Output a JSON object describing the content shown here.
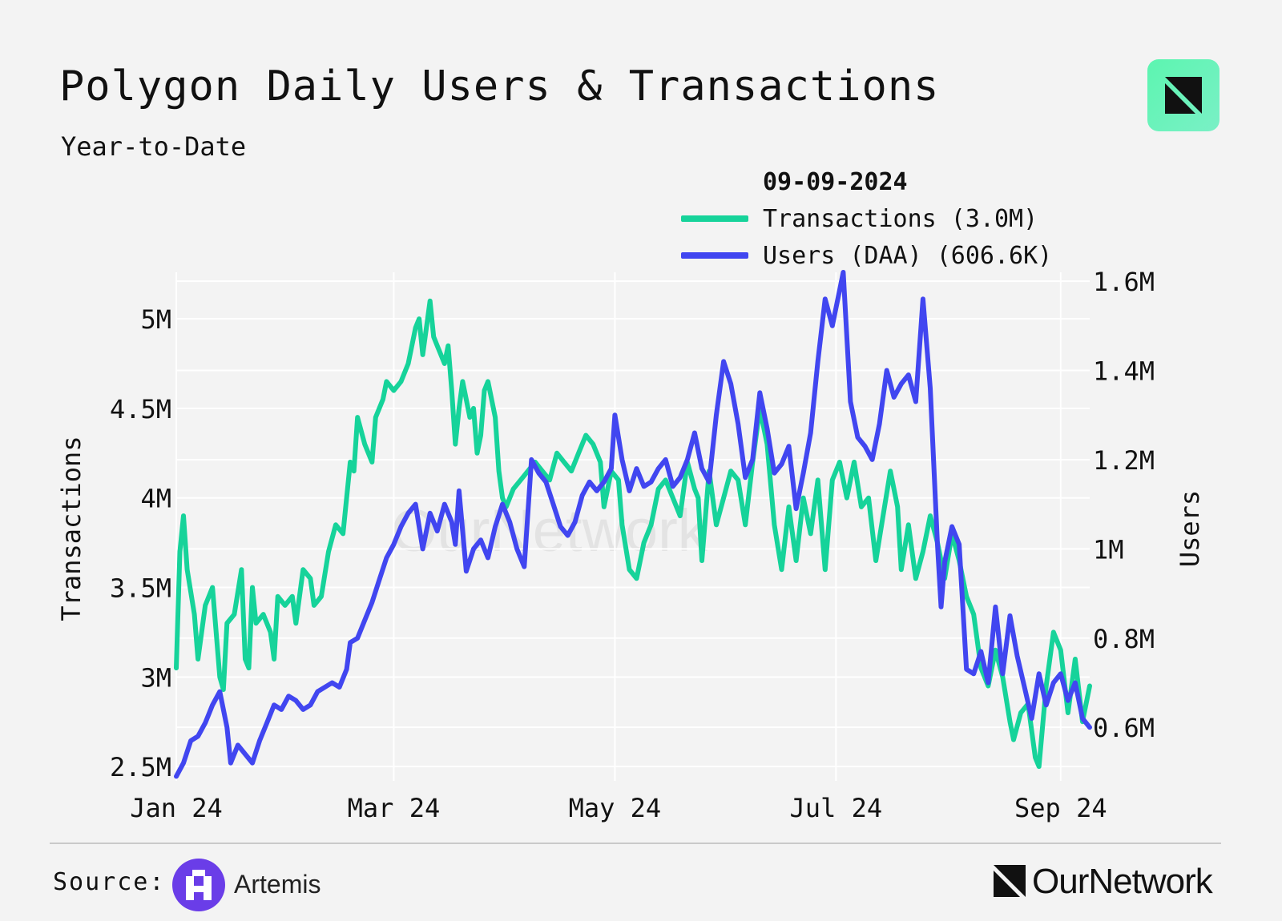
{
  "header": {
    "title": "Polygon Daily Users & Transactions",
    "subtitle": "Year-to-Date"
  },
  "legend": {
    "date": "09-09-2024",
    "items": [
      {
        "label": "Transactions (3.0M)",
        "color": "#16d39a"
      },
      {
        "label": "Users (DAA) (606.6K)",
        "color": "#4146f0"
      }
    ]
  },
  "watermark": "OurNetwork",
  "footer": {
    "source_label": "Source:",
    "source_name": "Artemis",
    "brand": "OurNetwork"
  },
  "chart_data": {
    "type": "line",
    "title": "Polygon Daily Users & Transactions",
    "subtitle": "Year-to-Date",
    "grid": true,
    "x_ticks": [
      "Jan 24",
      "Mar 24",
      "May 24",
      "Jul 24",
      "Sep 24"
    ],
    "x_tick_days": [
      0,
      60,
      121,
      182,
      244
    ],
    "x_range_days": [
      0,
      252
    ],
    "y_left": {
      "label": "Transactions",
      "ticks": [
        2500000,
        3000000,
        3500000,
        4000000,
        4500000,
        5000000
      ],
      "tick_labels": [
        "2.5M",
        "3M",
        "3.5M",
        "4M",
        "4.5M",
        "5M"
      ],
      "range": [
        2420000,
        5260000
      ]
    },
    "y_right": {
      "label": "Users",
      "ticks": [
        600000,
        800000,
        1000000,
        1200000,
        1400000,
        1600000
      ],
      "tick_labels": [
        "0.6M",
        "0.8M",
        "1M",
        "1.2M",
        "1.4M",
        "1.6M"
      ],
      "range": [
        480000,
        1620000
      ]
    },
    "series": [
      {
        "name": "Transactions",
        "axis": "left",
        "color": "#16d39a",
        "points": [
          [
            0,
            3050000
          ],
          [
            1,
            3700000
          ],
          [
            2,
            3900000
          ],
          [
            3,
            3600000
          ],
          [
            5,
            3350000
          ],
          [
            6,
            3100000
          ],
          [
            8,
            3400000
          ],
          [
            10,
            3500000
          ],
          [
            12,
            3000000
          ],
          [
            13,
            2930000
          ],
          [
            14,
            3300000
          ],
          [
            16,
            3350000
          ],
          [
            18,
            3600000
          ],
          [
            19,
            3100000
          ],
          [
            20,
            3050000
          ],
          [
            21,
            3500000
          ],
          [
            22,
            3300000
          ],
          [
            24,
            3350000
          ],
          [
            26,
            3250000
          ],
          [
            27,
            3100000
          ],
          [
            28,
            3450000
          ],
          [
            30,
            3400000
          ],
          [
            32,
            3450000
          ],
          [
            33,
            3300000
          ],
          [
            35,
            3600000
          ],
          [
            37,
            3550000
          ],
          [
            38,
            3400000
          ],
          [
            40,
            3450000
          ],
          [
            42,
            3700000
          ],
          [
            44,
            3850000
          ],
          [
            46,
            3800000
          ],
          [
            48,
            4200000
          ],
          [
            49,
            4150000
          ],
          [
            50,
            4450000
          ],
          [
            52,
            4300000
          ],
          [
            54,
            4200000
          ],
          [
            55,
            4450000
          ],
          [
            57,
            4550000
          ],
          [
            58,
            4650000
          ],
          [
            60,
            4600000
          ],
          [
            62,
            4650000
          ],
          [
            64,
            4750000
          ],
          [
            66,
            4950000
          ],
          [
            67,
            5000000
          ],
          [
            68,
            4800000
          ],
          [
            70,
            5100000
          ],
          [
            71,
            4900000
          ],
          [
            72,
            4850000
          ],
          [
            74,
            4750000
          ],
          [
            75,
            4850000
          ],
          [
            76,
            4600000
          ],
          [
            77,
            4300000
          ],
          [
            78,
            4500000
          ],
          [
            79,
            4650000
          ],
          [
            81,
            4450000
          ],
          [
            82,
            4500000
          ],
          [
            83,
            4250000
          ],
          [
            84,
            4350000
          ],
          [
            85,
            4600000
          ],
          [
            86,
            4650000
          ],
          [
            88,
            4450000
          ],
          [
            89,
            4150000
          ],
          [
            90,
            4000000
          ],
          [
            91,
            3950000
          ],
          [
            93,
            4050000
          ],
          [
            95,
            4100000
          ],
          [
            97,
            4150000
          ],
          [
            99,
            4200000
          ],
          [
            101,
            4150000
          ],
          [
            103,
            4100000
          ],
          [
            105,
            4250000
          ],
          [
            107,
            4200000
          ],
          [
            109,
            4150000
          ],
          [
            111,
            4250000
          ],
          [
            113,
            4350000
          ],
          [
            115,
            4300000
          ],
          [
            117,
            4200000
          ],
          [
            118,
            3950000
          ],
          [
            120,
            4150000
          ],
          [
            122,
            4100000
          ],
          [
            123,
            3850000
          ],
          [
            125,
            3600000
          ],
          [
            127,
            3550000
          ],
          [
            129,
            3750000
          ],
          [
            131,
            3850000
          ],
          [
            133,
            4050000
          ],
          [
            135,
            4100000
          ],
          [
            137,
            4000000
          ],
          [
            139,
            3900000
          ],
          [
            141,
            4200000
          ],
          [
            143,
            4050000
          ],
          [
            144,
            4000000
          ],
          [
            145,
            3650000
          ],
          [
            147,
            4150000
          ],
          [
            149,
            3850000
          ],
          [
            151,
            4000000
          ],
          [
            153,
            4150000
          ],
          [
            155,
            4100000
          ],
          [
            157,
            3850000
          ],
          [
            159,
            4200000
          ],
          [
            161,
            4500000
          ],
          [
            163,
            4300000
          ],
          [
            165,
            3850000
          ],
          [
            167,
            3600000
          ],
          [
            169,
            3950000
          ],
          [
            171,
            3650000
          ],
          [
            173,
            4000000
          ],
          [
            175,
            3800000
          ],
          [
            177,
            4100000
          ],
          [
            179,
            3600000
          ],
          [
            181,
            4100000
          ],
          [
            183,
            4200000
          ],
          [
            185,
            4000000
          ],
          [
            187,
            4200000
          ],
          [
            189,
            3950000
          ],
          [
            191,
            4000000
          ],
          [
            193,
            3650000
          ],
          [
            195,
            3900000
          ],
          [
            197,
            4150000
          ],
          [
            199,
            3950000
          ],
          [
            200,
            3600000
          ],
          [
            202,
            3850000
          ],
          [
            204,
            3550000
          ],
          [
            206,
            3700000
          ],
          [
            208,
            3900000
          ],
          [
            210,
            3750000
          ],
          [
            212,
            3550000
          ],
          [
            214,
            3800000
          ],
          [
            216,
            3650000
          ],
          [
            218,
            3450000
          ],
          [
            220,
            3350000
          ],
          [
            222,
            3050000
          ],
          [
            224,
            2950000
          ],
          [
            226,
            3150000
          ],
          [
            228,
            3000000
          ],
          [
            230,
            2750000
          ],
          [
            231,
            2650000
          ],
          [
            233,
            2800000
          ],
          [
            235,
            2850000
          ],
          [
            237,
            2550000
          ],
          [
            238,
            2500000
          ],
          [
            240,
            2950000
          ],
          [
            242,
            3250000
          ],
          [
            244,
            3150000
          ],
          [
            246,
            2800000
          ],
          [
            248,
            3100000
          ],
          [
            250,
            2750000
          ],
          [
            252,
            2950000
          ]
        ]
      },
      {
        "name": "Users (DAA)",
        "axis": "right",
        "color": "#4146f0",
        "points": [
          [
            0,
            490000
          ],
          [
            2,
            520000
          ],
          [
            4,
            570000
          ],
          [
            6,
            580000
          ],
          [
            8,
            610000
          ],
          [
            10,
            650000
          ],
          [
            12,
            680000
          ],
          [
            14,
            600000
          ],
          [
            15,
            520000
          ],
          [
            17,
            560000
          ],
          [
            19,
            540000
          ],
          [
            21,
            520000
          ],
          [
            23,
            570000
          ],
          [
            25,
            610000
          ],
          [
            27,
            650000
          ],
          [
            29,
            640000
          ],
          [
            31,
            670000
          ],
          [
            33,
            660000
          ],
          [
            35,
            640000
          ],
          [
            37,
            650000
          ],
          [
            39,
            680000
          ],
          [
            41,
            690000
          ],
          [
            43,
            700000
          ],
          [
            45,
            690000
          ],
          [
            47,
            730000
          ],
          [
            48,
            790000
          ],
          [
            50,
            800000
          ],
          [
            52,
            840000
          ],
          [
            54,
            880000
          ],
          [
            56,
            930000
          ],
          [
            58,
            980000
          ],
          [
            60,
            1010000
          ],
          [
            62,
            1050000
          ],
          [
            64,
            1080000
          ],
          [
            66,
            1100000
          ],
          [
            67,
            1050000
          ],
          [
            68,
            1000000
          ],
          [
            70,
            1080000
          ],
          [
            72,
            1040000
          ],
          [
            74,
            1100000
          ],
          [
            76,
            1060000
          ],
          [
            77,
            1010000
          ],
          [
            78,
            1130000
          ],
          [
            80,
            950000
          ],
          [
            82,
            1000000
          ],
          [
            84,
            1020000
          ],
          [
            86,
            980000
          ],
          [
            88,
            1050000
          ],
          [
            90,
            1100000
          ],
          [
            92,
            1060000
          ],
          [
            94,
            1000000
          ],
          [
            96,
            960000
          ],
          [
            98,
            1200000
          ],
          [
            100,
            1170000
          ],
          [
            102,
            1150000
          ],
          [
            104,
            1100000
          ],
          [
            106,
            1050000
          ],
          [
            108,
            1030000
          ],
          [
            110,
            1060000
          ],
          [
            112,
            1120000
          ],
          [
            114,
            1150000
          ],
          [
            116,
            1130000
          ],
          [
            118,
            1150000
          ],
          [
            120,
            1180000
          ],
          [
            121,
            1300000
          ],
          [
            123,
            1200000
          ],
          [
            125,
            1130000
          ],
          [
            127,
            1180000
          ],
          [
            129,
            1140000
          ],
          [
            131,
            1150000
          ],
          [
            133,
            1180000
          ],
          [
            135,
            1200000
          ],
          [
            137,
            1140000
          ],
          [
            139,
            1160000
          ],
          [
            141,
            1200000
          ],
          [
            143,
            1260000
          ],
          [
            145,
            1180000
          ],
          [
            147,
            1150000
          ],
          [
            149,
            1300000
          ],
          [
            151,
            1420000
          ],
          [
            153,
            1370000
          ],
          [
            155,
            1280000
          ],
          [
            157,
            1160000
          ],
          [
            159,
            1200000
          ],
          [
            161,
            1350000
          ],
          [
            163,
            1270000
          ],
          [
            165,
            1170000
          ],
          [
            167,
            1190000
          ],
          [
            169,
            1230000
          ],
          [
            171,
            1090000
          ],
          [
            173,
            1170000
          ],
          [
            175,
            1260000
          ],
          [
            177,
            1420000
          ],
          [
            179,
            1560000
          ],
          [
            181,
            1500000
          ],
          [
            183,
            1580000
          ],
          [
            184,
            1620000
          ],
          [
            186,
            1330000
          ],
          [
            188,
            1250000
          ],
          [
            190,
            1230000
          ],
          [
            192,
            1200000
          ],
          [
            194,
            1280000
          ],
          [
            196,
            1400000
          ],
          [
            198,
            1340000
          ],
          [
            200,
            1370000
          ],
          [
            202,
            1390000
          ],
          [
            204,
            1330000
          ],
          [
            206,
            1560000
          ],
          [
            208,
            1360000
          ],
          [
            210,
            1010000
          ],
          [
            211,
            870000
          ],
          [
            212,
            970000
          ],
          [
            214,
            1050000
          ],
          [
            216,
            1010000
          ],
          [
            218,
            730000
          ],
          [
            220,
            720000
          ],
          [
            222,
            770000
          ],
          [
            224,
            700000
          ],
          [
            226,
            870000
          ],
          [
            228,
            720000
          ],
          [
            230,
            850000
          ],
          [
            232,
            760000
          ],
          [
            234,
            690000
          ],
          [
            236,
            620000
          ],
          [
            238,
            720000
          ],
          [
            240,
            650000
          ],
          [
            242,
            700000
          ],
          [
            244,
            720000
          ],
          [
            246,
            660000
          ],
          [
            248,
            700000
          ],
          [
            250,
            620000
          ],
          [
            252,
            600000
          ]
        ]
      }
    ]
  }
}
